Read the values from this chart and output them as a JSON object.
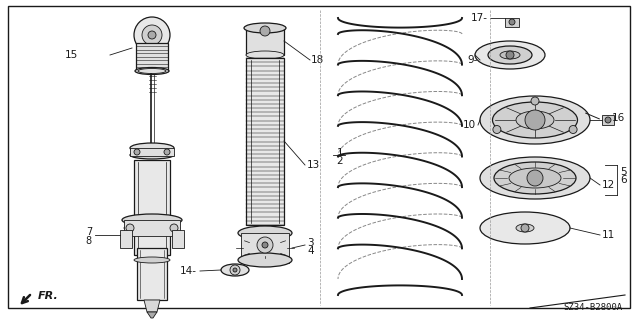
{
  "fig_width": 6.4,
  "fig_height": 3.19,
  "dpi": 100,
  "bg_color": "#ffffff",
  "line_color": "#1a1a1a",
  "diagram_code": "SZ34-B2800A",
  "fr_label": "FR.",
  "border": [
    8,
    6,
    630,
    308
  ]
}
